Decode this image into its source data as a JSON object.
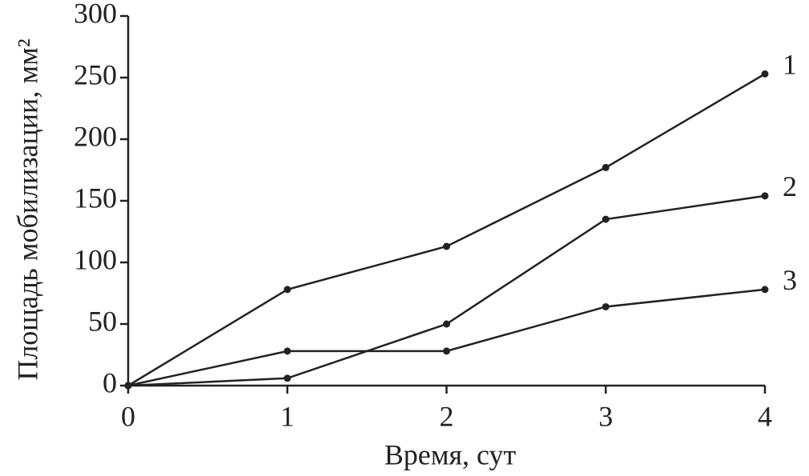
{
  "chart_data": {
    "type": "line",
    "x_label": "Время, сут",
    "y_label": "Площадь мобилизации, мм²",
    "x": [
      0,
      1,
      2,
      3,
      4
    ],
    "series": [
      {
        "name": "1",
        "color": "#222222",
        "values": [
          0,
          78,
          113,
          177,
          253
        ]
      },
      {
        "name": "2",
        "color": "#222222",
        "values": [
          0,
          6,
          50,
          135,
          154
        ]
      },
      {
        "name": "3",
        "color": "#222222",
        "values": [
          0,
          28,
          28,
          64,
          78
        ]
      }
    ],
    "xlim": [
      0,
      4
    ],
    "xticks": [
      0,
      1,
      2,
      3,
      4
    ],
    "ylim": [
      0,
      300
    ],
    "yticks": [
      0,
      50,
      100,
      150,
      200,
      250,
      300
    ],
    "grid": false
  }
}
